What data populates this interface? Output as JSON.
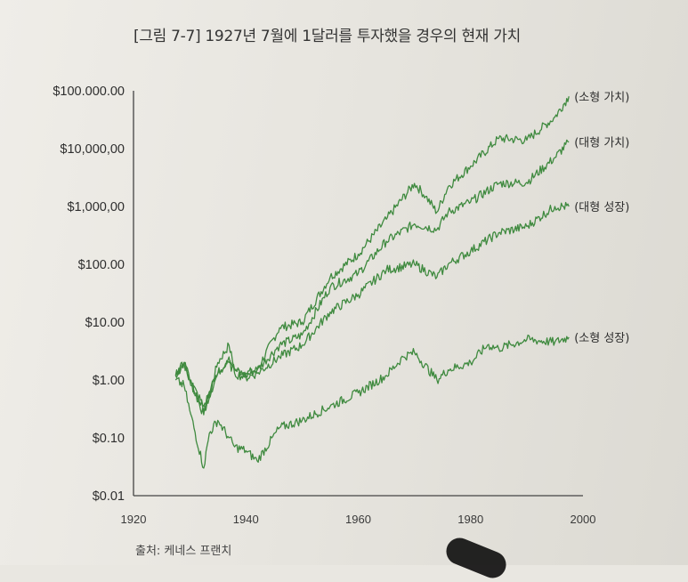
{
  "title": "[그림 7-7] 1927년 7월에 1달러를 투자했을 경우의 현재 가치",
  "source": "출처: 케네스 프랜치",
  "chart_data": {
    "type": "line",
    "title": "[그림 7-7] 1927년 7월에 1달러를 투자했을 경우의 현재 가치",
    "xlabel": "",
    "ylabel": "",
    "y_scale": "log",
    "xlim": [
      1920,
      2000
    ],
    "ylim": [
      0.01,
      100000
    ],
    "x_ticks": [
      "1920",
      "1940",
      "1960",
      "1980",
      "2000"
    ],
    "y_ticks": [
      "$0.01",
      "$0.10",
      "$1.00",
      "$10.00",
      "$100.00",
      "$1,000,00",
      "$10,000,00",
      "$100.000.00"
    ],
    "y_tick_values": [
      0.01,
      0.1,
      1,
      10,
      100,
      1000,
      10000,
      100000
    ],
    "line_color": "#3f8a3f",
    "series": [
      {
        "name": "(소형 가치)",
        "x": [
          1927.5,
          1929,
          1930,
          1932.5,
          1935,
          1937,
          1938,
          1940,
          1942,
          1946,
          1950,
          1955,
          1960,
          1965,
          1970,
          1972,
          1974,
          1976,
          1980,
          1985,
          1990,
          1995,
          1997.5
        ],
        "y": [
          1.2,
          2.0,
          1.0,
          0.25,
          2.0,
          4.0,
          1.5,
          1.3,
          1.5,
          8.0,
          10,
          60,
          150,
          600,
          2500,
          1500,
          800,
          2200,
          5000,
          15000,
          14000,
          35000,
          80000
        ]
      },
      {
        "name": "(대형 가치)",
        "x": [
          1927.5,
          1929,
          1930,
          1932.5,
          1935,
          1937,
          1938,
          1940,
          1942,
          1946,
          1950,
          1955,
          1960,
          1965,
          1970,
          1974,
          1976,
          1980,
          1985,
          1990,
          1995,
          1997.5
        ],
        "y": [
          1.2,
          2.0,
          1.0,
          0.3,
          1.3,
          2.5,
          1.5,
          1.2,
          1.5,
          4.0,
          6,
          40,
          70,
          250,
          500,
          400,
          800,
          1200,
          2500,
          2600,
          7000,
          13000
        ]
      },
      {
        "name": "(대형 성장)",
        "x": [
          1927.5,
          1929,
          1930,
          1932.5,
          1935,
          1937,
          1938,
          1940,
          1942,
          1946,
          1950,
          1955,
          1960,
          1965,
          1970,
          1974,
          1976,
          1980,
          1985,
          1990,
          1995,
          1997.5
        ],
        "y": [
          1.2,
          2.0,
          1.0,
          0.35,
          1.3,
          2.0,
          1.3,
          1.1,
          1.3,
          2.5,
          4,
          15,
          30,
          80,
          100,
          60,
          100,
          170,
          350,
          450,
          1000,
          1000
        ]
      },
      {
        "name": "(소형 성장)",
        "x": [
          1927.5,
          1929,
          1930,
          1932.5,
          1933.5,
          1935,
          1937,
          1938,
          1940,
          1942,
          1946,
          1950,
          1955,
          1960,
          1965,
          1968,
          1970,
          1974,
          1976,
          1980,
          1983,
          1985,
          1990,
          1995,
          1997.5
        ],
        "y": [
          1.0,
          0.8,
          0.3,
          0.03,
          0.12,
          0.2,
          0.1,
          0.07,
          0.06,
          0.04,
          0.15,
          0.2,
          0.35,
          0.6,
          1.2,
          2.5,
          3.0,
          1.0,
          1.5,
          2.0,
          4.0,
          3.5,
          5.0,
          4.5,
          5.5
        ]
      }
    ]
  }
}
